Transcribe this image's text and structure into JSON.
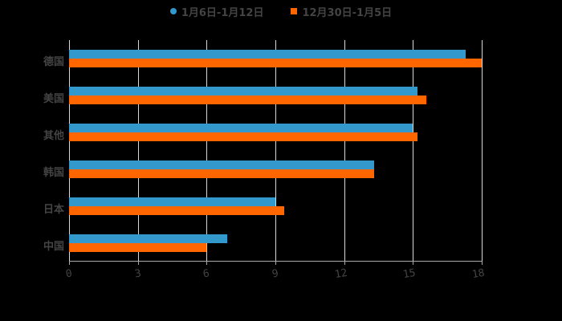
{
  "chart_data": {
    "type": "bar",
    "orientation": "horizontal",
    "title": "",
    "xlabel": "",
    "ylabel": "",
    "categories": [
      "德国",
      "美国",
      "其他",
      "韩国",
      "日本",
      "中国"
    ],
    "series": [
      {
        "name": "1月6日-1月12日",
        "color": "#3399cc",
        "values": [
          17.3,
          15.2,
          15.0,
          13.3,
          9.0,
          6.9
        ]
      },
      {
        "name": "12月30日-1月5日",
        "color": "#ff6600",
        "values": [
          18.0,
          15.6,
          15.2,
          13.3,
          9.4,
          6.0
        ]
      }
    ],
    "xlim": [
      0,
      18
    ],
    "xticks": [
      "0",
      "3",
      "6",
      "9",
      "12",
      "15",
      "18"
    ],
    "grid": true,
    "legend_position": "top"
  },
  "legend": {
    "items": [
      {
        "label": "1月6日-1月12日",
        "color": "#3399cc",
        "marker": "circle"
      },
      {
        "label": "12月30日-1月5日",
        "color": "#ff6600",
        "marker": "square"
      }
    ]
  }
}
